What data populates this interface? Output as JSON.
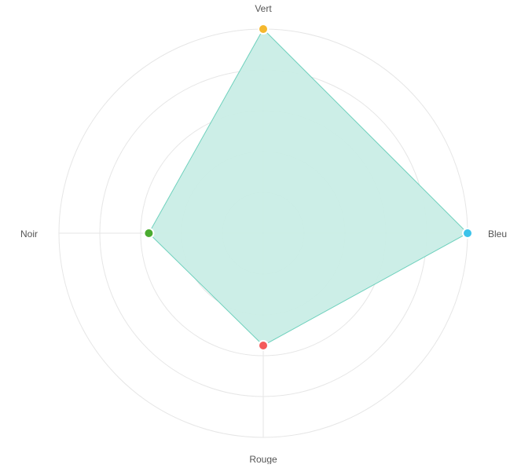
{
  "chart_data": {
    "type": "radar",
    "categories": [
      "Vert",
      "Bleu",
      "Rouge",
      "Noir"
    ],
    "values": [
      100,
      100,
      55,
      56
    ],
    "range": [
      0,
      100
    ],
    "rings": 5,
    "grid": true,
    "fill_color": "#c9ede6",
    "line_color": "#6fd1bd",
    "point_colors": [
      "#f5b82e",
      "#3cc3ea",
      "#f45b5b",
      "#4aab2f"
    ],
    "grid_color": "#e6e6e6"
  }
}
